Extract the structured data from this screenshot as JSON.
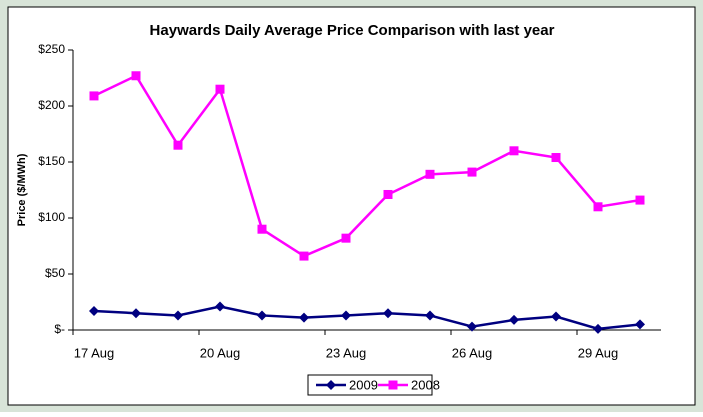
{
  "chart_data": {
    "type": "line",
    "title": "Haywards Daily Average Price Comparison with last year",
    "y_label": "Price ($/MWh)",
    "categories": [
      "17 Aug",
      null,
      null,
      "20 Aug",
      null,
      null,
      "23 Aug",
      null,
      null,
      "26 Aug",
      null,
      null,
      "29 Aug",
      null
    ],
    "series": [
      {
        "name": "2009",
        "color": "#000080",
        "marker": "diamond",
        "values": [
          17,
          15,
          13,
          21,
          13,
          11,
          13,
          15,
          13,
          3,
          9,
          12,
          1,
          5
        ]
      },
      {
        "name": "2008",
        "color": "#ff00ff",
        "marker": "square",
        "values": [
          209,
          227,
          165,
          215,
          90,
          66,
          82,
          121,
          139,
          141,
          160,
          154,
          110,
          116
        ]
      }
    ],
    "ylim": [
      0,
      250
    ],
    "yticks": [
      {
        "value": 0,
        "label": "$-"
      },
      {
        "value": 50,
        "label": "$50"
      },
      {
        "value": 100,
        "label": "$100"
      },
      {
        "value": 150,
        "label": "$150"
      },
      {
        "value": 200,
        "label": "$200"
      },
      {
        "value": 250,
        "label": "$250"
      }
    ],
    "grid": false,
    "legend": "bottom"
  }
}
